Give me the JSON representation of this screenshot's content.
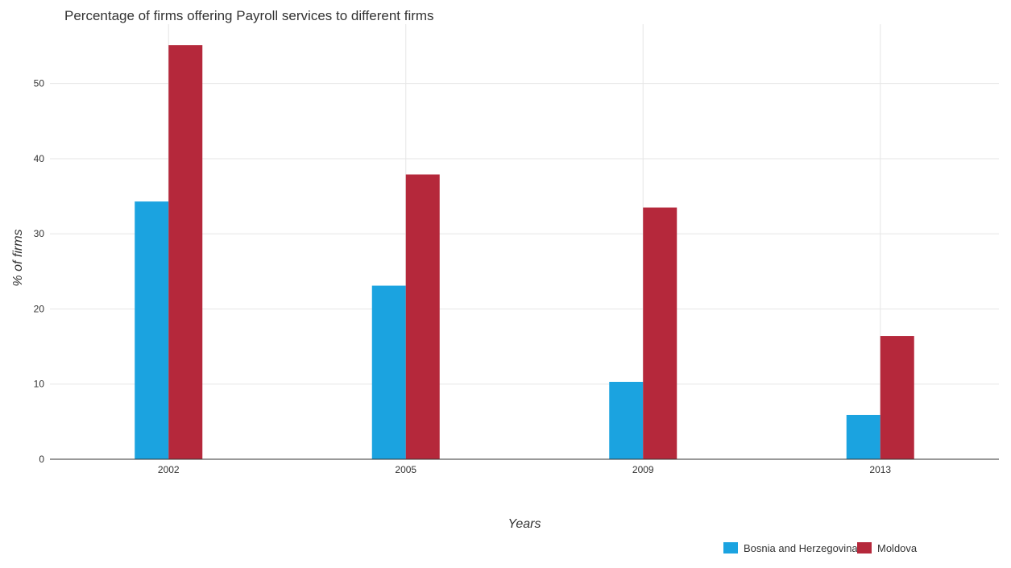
{
  "chart_data": {
    "type": "bar",
    "title": "Percentage of firms offering Payroll services to different firms",
    "xlabel": "Years",
    "ylabel": "% of firms",
    "categories": [
      "2002",
      "2005",
      "2009",
      "2013"
    ],
    "ylim": [
      0,
      57.9
    ],
    "yticks": [
      0,
      10,
      20,
      30,
      40,
      50
    ],
    "grid": true,
    "legend_position": "bottom-right",
    "series": [
      {
        "name": "Bosnia and Herzegovina",
        "color": "#1ba3e0",
        "values": [
          34.3,
          23.1,
          10.3,
          5.9
        ]
      },
      {
        "name": "Moldova",
        "color": "#b5283b",
        "values": [
          55.1,
          37.9,
          33.5,
          16.4
        ]
      }
    ]
  }
}
